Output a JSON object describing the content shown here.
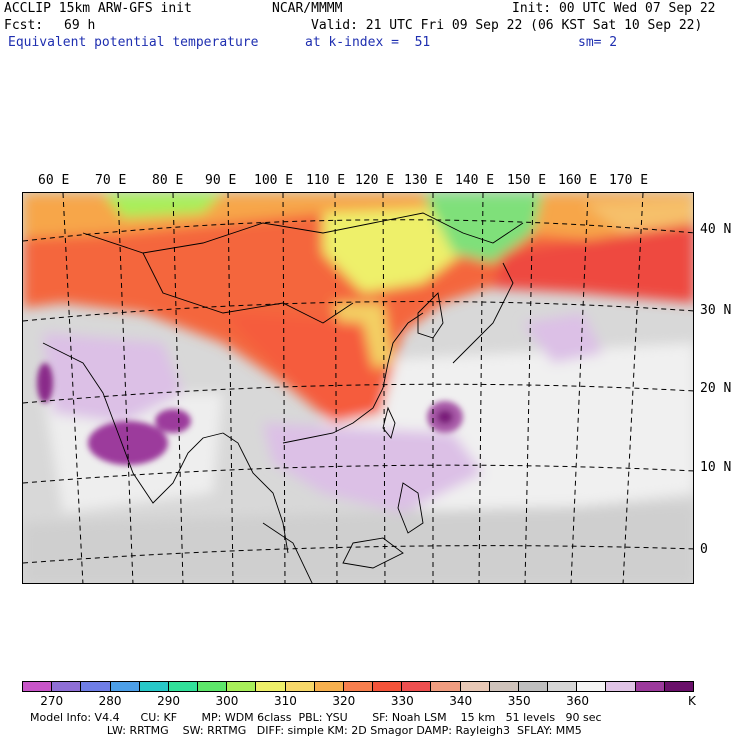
{
  "header": {
    "model": "ACCLIP 15km ARW-GFS init",
    "org": "NCAR/MMMM",
    "init": "Init: 00 UTC Wed 07 Sep 22",
    "fcst_label": "Fcst:",
    "fcst_value": "69 h",
    "valid": "Valid: 21 UTC Fri 09 Sep 22 (06 KST Sat 10 Sep 22)",
    "field": "Equivalent potential temperature",
    "level": "at k-index =  51",
    "smooth": "sm= 2"
  },
  "axes": {
    "lon_labels": [
      "60 E",
      "70 E",
      "80 E",
      "90 E",
      "100 E",
      "110 E",
      "120 E",
      "130 E",
      "140 E",
      "150 E",
      "160 E",
      "170 E"
    ],
    "lat_labels": [
      "40 N",
      "30 N",
      "20 N",
      "10 N",
      "0"
    ]
  },
  "colorbar": {
    "colors": [
      "#c855c8",
      "#8f6fd6",
      "#6f7ee6",
      "#4d9fe8",
      "#28c8c8",
      "#31e19a",
      "#5de66a",
      "#a8ef5a",
      "#eef06a",
      "#f7d86a",
      "#f6b04e",
      "#f77f4e",
      "#f4543a",
      "#ee5050",
      "#f19d80",
      "#e8c8b6",
      "#cfc3bb",
      "#bfbfbf",
      "#d6d6d6",
      "#f4f4f4",
      "#e0c4e6",
      "#9c3a9c",
      "#6a106a"
    ],
    "tick_labels": [
      "270",
      "280",
      "290",
      "300",
      "310",
      "320",
      "330",
      "340",
      "350",
      "360"
    ],
    "unit": "K"
  },
  "footer": {
    "line1": "Model Info: V4.4      CU: KF       MP: WDM 6class  PBL: YSU       SF: Noah LSM    15 km   51 levels   90 sec",
    "line2": "                      LW: RRTMG    SW: RRTMG   DIFF: simple KM: 2D Smagor DAMP: Rayleigh3  SFLAY: MM5"
  }
}
